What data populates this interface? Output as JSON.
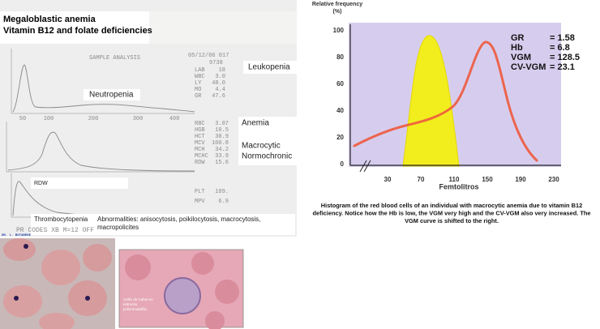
{
  "title": {
    "lines": [
      "Megaloblastic anemia",
      "Vitamin B12 and folate deficiencies"
    ]
  },
  "printout": {
    "header": "SAMPLE ANALYSIS",
    "date": "05/12/06 017",
    "id": "9738",
    "wbc_params": [
      [
        "LAB",
        "18"
      ],
      [
        "WBC",
        "3.0"
      ],
      [
        "LY",
        "48.0"
      ],
      [
        "MO",
        "4.4"
      ],
      [
        "GR",
        "47.6"
      ]
    ],
    "rbc_params": [
      [
        "RBC",
        "3.07"
      ],
      [
        "HGB",
        "10.5"
      ],
      [
        "HCT",
        "30.9"
      ],
      [
        "MCV",
        "100.8"
      ],
      [
        "MCH",
        "34.2"
      ],
      [
        "MCHC",
        "33.9"
      ],
      [
        "RDW",
        "15.6"
      ]
    ],
    "plt_params": [
      [
        "PLT",
        "109."
      ],
      [
        "MPV",
        "6.9"
      ]
    ],
    "wbc_axis": [
      "50",
      "100",
      "200",
      "300",
      "400"
    ],
    "footer": "PR CODES XB M=12 OFF",
    "credit": "DR. L. BUTAREKE"
  },
  "annotations": {
    "leukopenia": "Leukopenia",
    "neutropenia": "Neutropenia",
    "anemia": "Anemia",
    "macrocytic": "Macrocytic",
    "normochronic": "Normochronic",
    "rdw": "RDW",
    "thrombocytopenia": "Thrombocytopenia",
    "abnormalities": [
      "Abnormalities: anisocytosis, poikilocytosis, macrocytosis,",
      "macropolicites"
    ]
  },
  "histogram": {
    "y_label": [
      "Relative frequency",
      "(%)"
    ],
    "y_ticks": [
      "100",
      "80",
      "60",
      "40",
      "20",
      "0"
    ],
    "x_ticks": [
      "30",
      "70",
      "110",
      "150",
      "190",
      "230"
    ],
    "x_label": "Femtolitros",
    "stats": [
      [
        "GR",
        "= 1.58"
      ],
      [
        "Hb",
        "= 6.8"
      ],
      [
        "VGM",
        "= 128.5"
      ],
      [
        "CV-VGM",
        "= 23.1"
      ]
    ],
    "caption": [
      "Histogram of the red blood cells of an individual with macrocytic anemia due to vitamin B12",
      "deficiency. Notice how the Hb is low, the VGM very high and the CV-VGM also very increased. The",
      "VGM curve is shifted to the right."
    ]
  },
  "smear_caption": [
    "Anillo de Cabot en",
    "eritrocito",
    "policromatófilo"
  ]
}
